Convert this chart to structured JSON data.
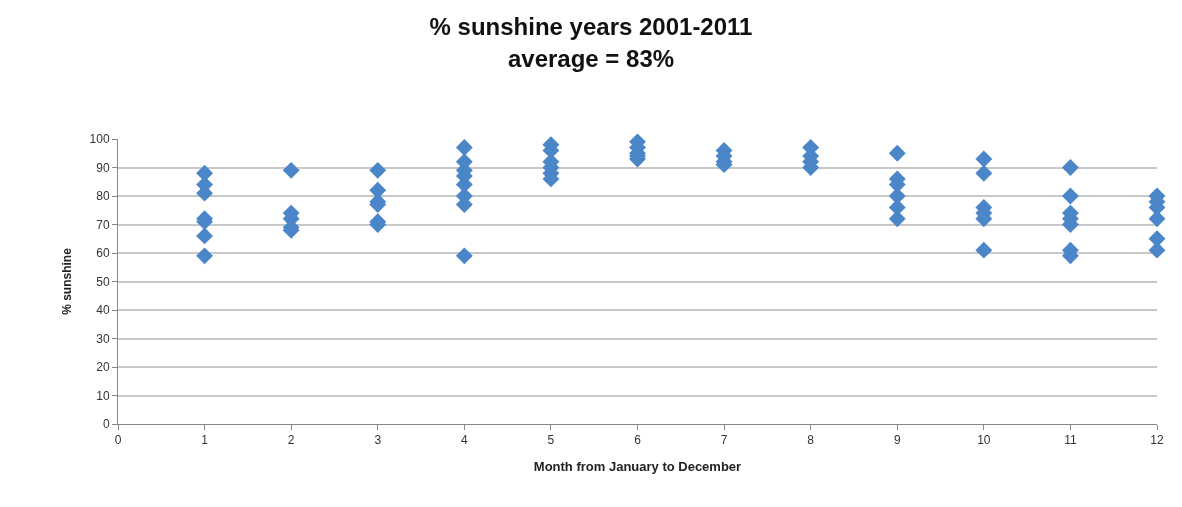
{
  "chart_data": {
    "type": "scatter",
    "title": "% sunshine years 2001-2011",
    "subtitle": "average = 83%",
    "xlabel": "Month from January to December",
    "ylabel": "% sunshine",
    "x": [
      1,
      1,
      1,
      1,
      1,
      1,
      1,
      2,
      2,
      2,
      2,
      2,
      3,
      3,
      3,
      3,
      3,
      3,
      4,
      4,
      4,
      4,
      4,
      4,
      4,
      4,
      5,
      5,
      5,
      5,
      5,
      5,
      6,
      6,
      6,
      6,
      6,
      7,
      7,
      7,
      7,
      8,
      8,
      8,
      8,
      9,
      9,
      9,
      9,
      9,
      9,
      10,
      10,
      10,
      10,
      10,
      10,
      11,
      11,
      11,
      11,
      11,
      11,
      11,
      12,
      12,
      12,
      12,
      12,
      12
    ],
    "values": [
      88,
      84,
      81,
      72,
      71,
      66,
      59,
      89,
      74,
      72,
      69,
      68,
      89,
      82,
      78,
      77,
      71,
      70,
      97,
      92,
      89,
      87,
      84,
      80,
      77,
      59,
      98,
      96,
      92,
      90,
      88,
      86,
      99,
      97,
      95,
      94,
      93,
      96,
      94,
      92,
      91,
      97,
      94,
      92,
      90,
      95,
      86,
      84,
      80,
      76,
      72,
      93,
      88,
      76,
      74,
      72,
      61,
      90,
      80,
      74,
      72,
      70,
      61,
      59,
      80,
      78,
      76,
      72,
      65,
      61
    ],
    "color": "#4a86c8",
    "marker": "diamond",
    "grid": "y",
    "xlim": [
      0,
      12
    ],
    "xticks": [
      0,
      1,
      2,
      3,
      4,
      5,
      6,
      7,
      8,
      9,
      10,
      11,
      12
    ],
    "ylim": [
      0,
      100
    ],
    "yticks": [
      0,
      10,
      20,
      30,
      40,
      50,
      60,
      70,
      80,
      90,
      100
    ]
  }
}
